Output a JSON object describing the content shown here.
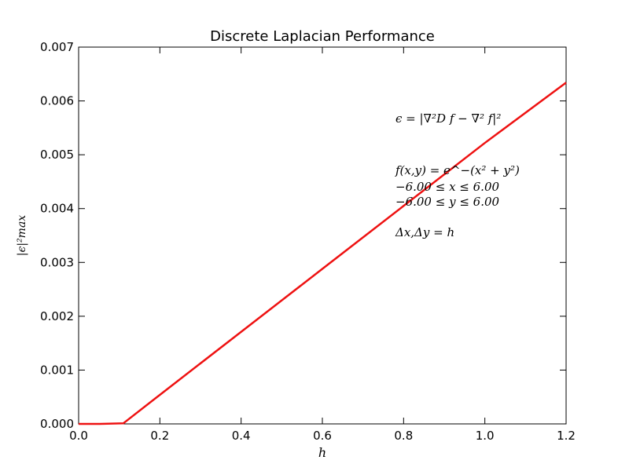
{
  "chart_data": {
    "type": "line",
    "title": "Discrete Laplacian Performance",
    "xlabel": "h",
    "ylabel": "|ϵ|²max",
    "xlim": [
      0.0,
      1.2
    ],
    "ylim": [
      0.0,
      0.007
    ],
    "x_ticks": [
      "0.0",
      "0.2",
      "0.4",
      "0.6",
      "0.8",
      "1.0",
      "1.2"
    ],
    "y_ticks": [
      "0.000",
      "0.001",
      "0.002",
      "0.003",
      "0.004",
      "0.005",
      "0.006",
      "0.007"
    ],
    "grid": false,
    "series": [
      {
        "color": "#ee1111",
        "x": [
          0.0,
          0.05,
          0.11,
          0.2,
          0.4,
          0.6,
          0.8,
          1.0,
          1.2
        ],
        "y": [
          0.0,
          0.0,
          1e-05,
          0.00054,
          0.00171,
          0.00288,
          0.00405,
          0.00522,
          0.00634
        ]
      }
    ],
    "annotations": [
      "ϵ = |∇²D f − ∇² f|²",
      "f(x,y) = e^−(x² + y²)",
      "−6.00 ≤ x ≤ 6.00",
      "−6.00 ≤ y ≤ 6.00",
      "Δx,Δy = h"
    ]
  }
}
